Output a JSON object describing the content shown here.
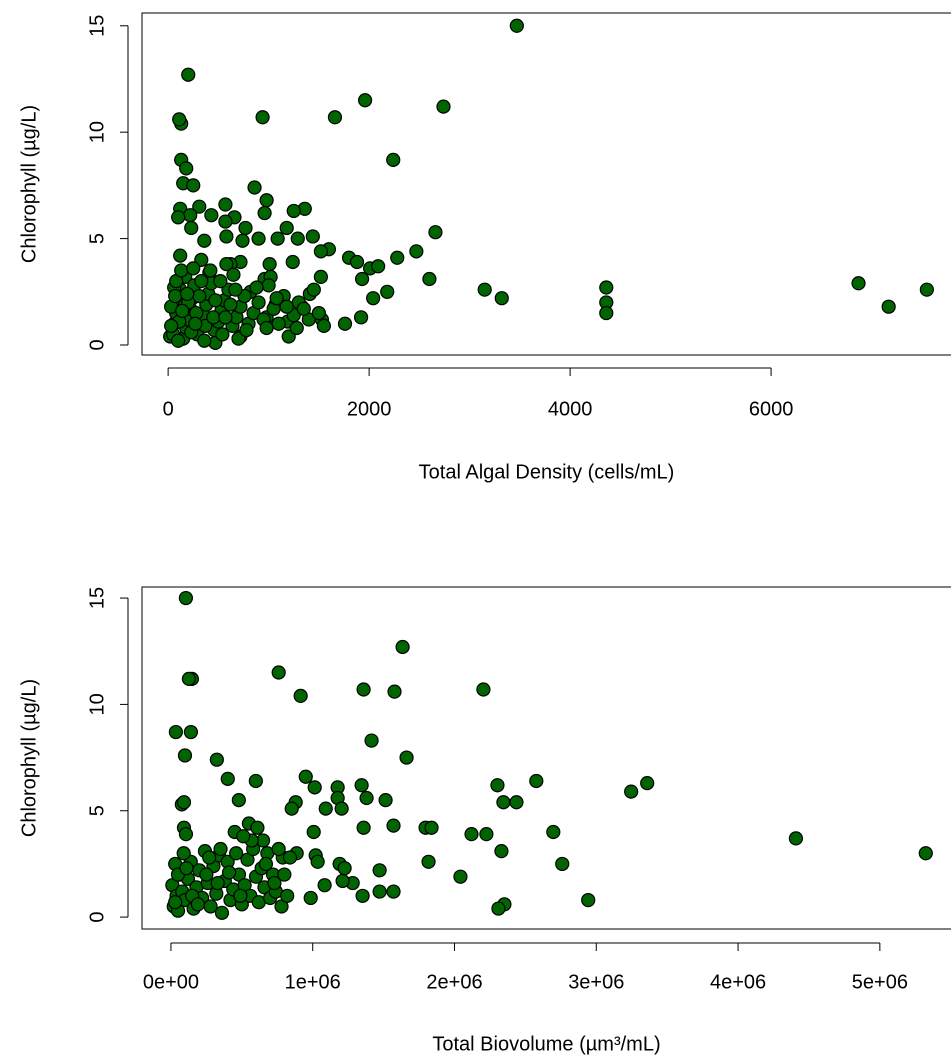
{
  "chart_data": [
    {
      "type": "scatter",
      "xlabel": "Total Algal Density (cells/mL)",
      "ylabel": "Chlorophyll (µg/L)",
      "color": "#006400",
      "xlim": [
        -260,
        7830
      ],
      "ylim": [
        -0.47,
        15.6
      ],
      "xticks": [
        0,
        2000,
        4000,
        6000
      ],
      "yticks": [
        0,
        5,
        10,
        15
      ],
      "x": [
        3470,
        200,
        130,
        110,
        1960,
        2740,
        940,
        1660,
        2240,
        130,
        180,
        150,
        250,
        860,
        570,
        980,
        310,
        120,
        1360,
        1250,
        430,
        220,
        960,
        100,
        660,
        570,
        230,
        1180,
        770,
        2660,
        580,
        900,
        1440,
        740,
        360,
        1290,
        1090,
        1600,
        2470,
        1800,
        2280,
        1520,
        330,
        120,
        720,
        1240,
        1880,
        2010,
        2090,
        620,
        1010,
        1520,
        1930,
        2600,
        960,
        1020,
        170,
        410,
        3150,
        3320,
        4360,
        4360,
        4360,
        6870,
        7170,
        7550,
        2180,
        2040,
        1920,
        1760,
        1530,
        1410,
        1330,
        1190,
        1070,
        980,
        720,
        820,
        470,
        20,
        50,
        60,
        80,
        100,
        120,
        60,
        150,
        180,
        200,
        220,
        240,
        260,
        290,
        320,
        350,
        380,
        400,
        430,
        460,
        500,
        530,
        560,
        600,
        640,
        680,
        700,
        720,
        760,
        800,
        850,
        900,
        950,
        1000,
        1050,
        1100,
        1150,
        1200,
        1250,
        1300,
        1400,
        1450,
        1500,
        1550,
        80,
        130,
        250,
        330,
        420,
        520,
        580,
        650,
        30,
        110,
        170,
        230,
        310,
        370,
        450,
        540,
        620,
        100,
        200,
        280,
        360,
        470,
        570,
        670,
        780,
        880,
        980,
        1080,
        1180,
        1280,
        1350,
        30,
        70,
        140,
        190,
        270
      ],
      "values": [
        15.0,
        12.7,
        10.4,
        10.6,
        11.5,
        11.2,
        10.7,
        10.7,
        8.7,
        8.7,
        8.3,
        7.6,
        7.5,
        7.4,
        6.6,
        6.8,
        6.5,
        6.4,
        6.4,
        6.3,
        6.1,
        6.1,
        6.2,
        6.0,
        6.0,
        5.8,
        5.5,
        5.5,
        5.5,
        5.3,
        5.1,
        5.0,
        5.1,
        4.9,
        4.9,
        5.0,
        5.0,
        4.5,
        4.4,
        4.1,
        4.1,
        4.4,
        4.0,
        4.2,
        3.9,
        3.9,
        3.9,
        3.6,
        3.7,
        3.8,
        3.8,
        3.2,
        3.1,
        3.1,
        3.1,
        3.2,
        3.2,
        3.4,
        2.6,
        2.2,
        2.7,
        2.0,
        1.5,
        2.9,
        1.8,
        2.6,
        2.5,
        2.2,
        1.3,
        1.0,
        1.2,
        2.4,
        1.8,
        1.1,
        1.9,
        1.3,
        0.4,
        2.5,
        0.1,
        0.4,
        0.5,
        1.0,
        1.5,
        2.0,
        2.6,
        2.7,
        0.3,
        0.8,
        1.2,
        1.7,
        2.2,
        2.8,
        0.5,
        1.0,
        1.4,
        1.9,
        2.4,
        2.9,
        0.7,
        1.1,
        1.6,
        2.1,
        2.6,
        0.9,
        1.3,
        0.3,
        1.8,
        2.3,
        1.0,
        1.5,
        2.0,
        1.2,
        2.8,
        1.7,
        1.0,
        2.3,
        0.4,
        1.4,
        2.0,
        1.2,
        2.6,
        1.5,
        0.9,
        3.0,
        3.5,
        3.6,
        3.0,
        3.5,
        3.0,
        3.8,
        3.3,
        1.8,
        1.1,
        1.9,
        0.6,
        2.3,
        0.9,
        1.3,
        0.5,
        1.9,
        0.2,
        2.0,
        1.5,
        0.2,
        2.1,
        1.3,
        2.6,
        0.7,
        2.7,
        0.8,
        2.2,
        1.8,
        0.8,
        1.7,
        0.9,
        2.3,
        1.6,
        2.4,
        1.0
      ]
    },
    {
      "type": "scatter",
      "xlabel": "Total Biovolume (µm³/mL)",
      "ylabel": "Chlorophyll (µg/L)",
      "color": "#006400",
      "xlim": [
        -204000,
        5530000
      ],
      "ylim": [
        -0.56,
        15.52
      ],
      "xticks": [
        {
          "value": 0,
          "label": "0e+00"
        },
        {
          "value": 1000000,
          "label": "1e+06"
        },
        {
          "value": 2000000,
          "label": "2e+06"
        },
        {
          "value": 3000000,
          "label": "3e+06"
        },
        {
          "value": 4000000,
          "label": "4e+06"
        },
        {
          "value": 5000000,
          "label": "5e+06"
        }
      ],
      "yticks": [
        0,
        5,
        10,
        15
      ],
      "x": [
        105600,
        1634000,
        760000,
        148000,
        127000,
        915000,
        1359000,
        1577000,
        2204000,
        35000,
        141000,
        1415000,
        99000,
        324000,
        1662000,
        401000,
        599000,
        951000,
        2577000,
        3359000,
        3246000,
        2303000,
        1345000,
        1014000,
        1176000,
        1176000,
        1514000,
        1380000,
        77000,
        92000,
        479000,
        1092000,
        880000,
        852000,
        1204000,
        2345000,
        2437000,
        1796000,
        1570000,
        1359000,
        1838000,
        2697000,
        92000,
        106000,
        1007000,
        2120000,
        2225000,
        4408000,
        5324000,
        2331000,
        1817000,
        2760000,
        2042000,
        1472000,
        1570000,
        1472000,
        1352000,
        1282000,
        1211000,
        1084000,
        986000,
        2943000,
        2352000,
        2310000,
        1021000,
        1035000,
        1190000,
        1225000,
        887000,
        789000,
        10000,
        20000,
        30000,
        40000,
        50000,
        60000,
        80000,
        100000,
        120000,
        140000,
        160000,
        180000,
        200000,
        220000,
        240000,
        260000,
        280000,
        300000,
        320000,
        340000,
        360000,
        380000,
        400000,
        420000,
        440000,
        460000,
        480000,
        500000,
        520000,
        540000,
        560000,
        580000,
        600000,
        620000,
        640000,
        660000,
        680000,
        700000,
        720000,
        740000,
        760000,
        780000,
        800000,
        820000,
        840000,
        50000,
        90000,
        150000,
        250000,
        350000,
        450000,
        550000,
        650000,
        30000,
        110000,
        190000,
        270000,
        330000,
        410000,
        490000,
        570000,
        610000,
        670000,
        730000,
        510000
      ],
      "values": [
        15.0,
        12.7,
        11.5,
        11.2,
        11.2,
        10.4,
        10.7,
        10.6,
        10.7,
        8.7,
        8.7,
        8.3,
        7.6,
        7.4,
        7.5,
        6.5,
        6.4,
        6.6,
        6.4,
        6.3,
        5.9,
        6.2,
        6.2,
        6.1,
        6.1,
        5.6,
        5.5,
        5.6,
        5.3,
        5.4,
        5.5,
        5.1,
        5.4,
        5.1,
        5.1,
        5.4,
        5.4,
        4.2,
        4.3,
        4.2,
        4.2,
        4.0,
        4.2,
        3.9,
        4.0,
        3.9,
        3.9,
        3.7,
        3.0,
        3.1,
        2.6,
        2.5,
        1.9,
        2.2,
        1.2,
        1.2,
        1.0,
        1.6,
        1.7,
        1.5,
        0.9,
        0.8,
        0.6,
        0.4,
        2.9,
        2.6,
        2.5,
        2.3,
        3.0,
        2.8,
        1.5,
        0.5,
        2.5,
        1.0,
        0.3,
        2.0,
        1.2,
        0.8,
        1.8,
        2.6,
        0.4,
        1.4,
        2.2,
        0.9,
        3.1,
        1.6,
        0.5,
        2.4,
        1.1,
        2.9,
        0.2,
        1.7,
        2.6,
        0.8,
        1.3,
        3.0,
        2.0,
        0.6,
        1.5,
        2.7,
        1.0,
        3.2,
        1.9,
        0.7,
        2.3,
        1.4,
        3.0,
        0.9,
        2.0,
        1.2,
        3.2,
        0.5,
        2.0,
        1.0,
        2.8,
        2.0,
        3.0,
        1.0,
        2.0,
        3.2,
        4.0,
        4.4,
        3.6,
        0.7,
        2.3,
        0.6,
        2.8,
        1.6,
        2.1,
        1.0,
        3.6,
        4.2,
        2.5,
        1.6,
        3.8
      ]
    }
  ]
}
